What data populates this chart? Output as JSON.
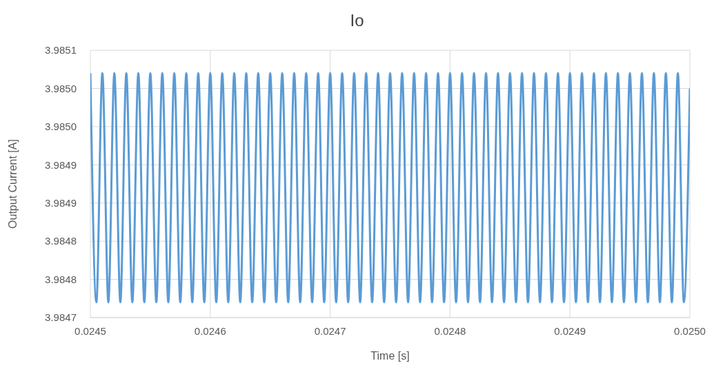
{
  "chart_data": {
    "type": "line",
    "title": "Io",
    "xlabel": "Time [s]",
    "ylabel": "Output Current [A]",
    "x": [
      0.0245,
      0.024505,
      0.02451,
      0.024515,
      0.02452,
      0.024525,
      0.02453,
      0.024535,
      0.02454,
      0.024545,
      0.02455,
      0.024555,
      0.02456,
      0.024565,
      0.02457,
      0.024575,
      0.02458,
      0.024585,
      0.02459,
      0.024595,
      0.0246,
      0.024605,
      0.02461,
      0.024615,
      0.02462,
      0.024625,
      0.02463,
      0.024635,
      0.02464,
      0.024645,
      0.02465,
      0.024655,
      0.02466,
      0.024665,
      0.02467,
      0.024675,
      0.02468,
      0.024685,
      0.02469,
      0.024695,
      0.0247,
      0.024705,
      0.02471,
      0.024715,
      0.02472,
      0.024725,
      0.02473,
      0.024735,
      0.02474,
      0.024745,
      0.02475,
      0.024755,
      0.02476,
      0.024765,
      0.02477,
      0.024775,
      0.02478,
      0.024785,
      0.02479,
      0.024795,
      0.0248,
      0.024805,
      0.02481,
      0.024815,
      0.02482,
      0.024825,
      0.02483,
      0.024835,
      0.02484,
      0.024845,
      0.02485,
      0.024855,
      0.02486,
      0.024865,
      0.02487,
      0.024875,
      0.02488,
      0.024885,
      0.02489,
      0.024895,
      0.0249,
      0.024905,
      0.02491,
      0.024915,
      0.02492,
      0.024925,
      0.02493,
      0.024935,
      0.02494,
      0.024945,
      0.02495,
      0.024955,
      0.02496,
      0.024965,
      0.02497,
      0.024975,
      0.02498,
      0.024985,
      0.02499,
      0.024995,
      0.025
    ],
    "series": [
      {
        "color": "#5b9bd5",
        "values": [
          3.98502,
          3.98472,
          3.98502,
          3.98472,
          3.98502,
          3.98472,
          3.98502,
          3.98472,
          3.98502,
          3.98472,
          3.98502,
          3.98472,
          3.98502,
          3.98472,
          3.98502,
          3.98472,
          3.98502,
          3.98472,
          3.98502,
          3.98472,
          3.98502,
          3.98472,
          3.98502,
          3.98472,
          3.98502,
          3.98472,
          3.98502,
          3.98472,
          3.98502,
          3.98472,
          3.98502,
          3.98472,
          3.98502,
          3.98472,
          3.98502,
          3.98472,
          3.98502,
          3.98472,
          3.98502,
          3.98472,
          3.98502,
          3.98472,
          3.98502,
          3.98472,
          3.98502,
          3.98472,
          3.98502,
          3.98472,
          3.98502,
          3.98472,
          3.98502,
          3.98472,
          3.98502,
          3.98472,
          3.98502,
          3.98472,
          3.98502,
          3.98472,
          3.98502,
          3.98472,
          3.98502,
          3.98472,
          3.98502,
          3.98472,
          3.98502,
          3.98472,
          3.98502,
          3.98472,
          3.98502,
          3.98472,
          3.98502,
          3.98472,
          3.98502,
          3.98472,
          3.98502,
          3.98472,
          3.98502,
          3.98472,
          3.98502,
          3.98472,
          3.98502,
          3.98472,
          3.98502,
          3.98472,
          3.98502,
          3.98472,
          3.98502,
          3.98472,
          3.98502,
          3.98472,
          3.98502,
          3.98472,
          3.98502,
          3.98472,
          3.98502,
          3.98472,
          3.98502,
          3.98472,
          3.98502,
          3.98472,
          3.985
        ]
      }
    ],
    "xlim": [
      0.0245,
      0.025
    ],
    "xticks": [
      0.0245,
      0.0246,
      0.0247,
      0.0248,
      0.0249,
      {
        "value": 0.025,
        "label": "0.0250"
      }
    ],
    "ylim": [
      3.9847,
      3.98505
    ],
    "yticks": [
      {
        "value": 3.9847,
        "label": "3.9847"
      },
      {
        "value": 3.98475,
        "label": "3.9848"
      },
      {
        "value": 3.9848,
        "label": "3.9848"
      },
      {
        "value": 3.98485,
        "label": "3.9849"
      },
      {
        "value": 3.9849,
        "label": "3.9849"
      },
      {
        "value": 3.98495,
        "label": "3.9850"
      },
      {
        "value": 3.985,
        "label": "3.9850"
      },
      {
        "value": 3.98505,
        "label": "3.9851"
      }
    ],
    "grid": true,
    "marker": "none",
    "line_style": "solid"
  }
}
